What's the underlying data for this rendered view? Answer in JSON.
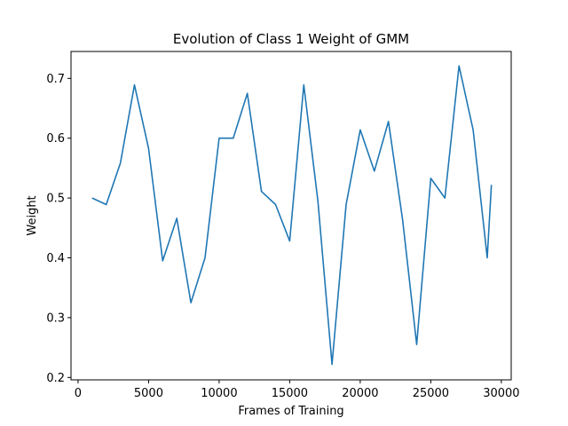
{
  "chart_data": {
    "type": "line",
    "title": "Evolution of Class 1 Weight of GMM",
    "xlabel": "Frames of Training",
    "ylabel": "Weight",
    "xlim": [
      -500,
      30700
    ],
    "ylim": [
      0.196,
      0.745
    ],
    "x_ticks": [
      0,
      5000,
      10000,
      15000,
      20000,
      25000,
      30000
    ],
    "y_ticks": [
      0.2,
      0.3,
      0.4,
      0.5,
      0.6,
      0.7
    ],
    "y_tick_labels": [
      "0.2",
      "0.3",
      "0.4",
      "0.5",
      "0.6",
      "0.7"
    ],
    "grid": false,
    "line_color": "#1f77b4",
    "series": [
      {
        "x": [
          1000,
          2000,
          3000,
          4000,
          5000,
          6000,
          7000,
          8000,
          9000,
          10000,
          11000,
          12000,
          13000,
          14000,
          15000,
          16000,
          17000,
          18000,
          19000,
          20000,
          21000,
          22000,
          23000,
          24000,
          25000,
          26000,
          27000,
          28000,
          29000,
          29300
        ],
        "values": [
          0.5,
          0.489,
          0.558,
          0.689,
          0.583,
          0.395,
          0.466,
          0.325,
          0.4,
          0.6,
          0.6,
          0.675,
          0.511,
          0.489,
          0.428,
          0.689,
          0.495,
          0.222,
          0.489,
          0.614,
          0.545,
          0.628,
          0.464,
          0.255,
          0.533,
          0.5,
          0.721,
          0.614,
          0.4,
          0.522
        ]
      }
    ]
  }
}
